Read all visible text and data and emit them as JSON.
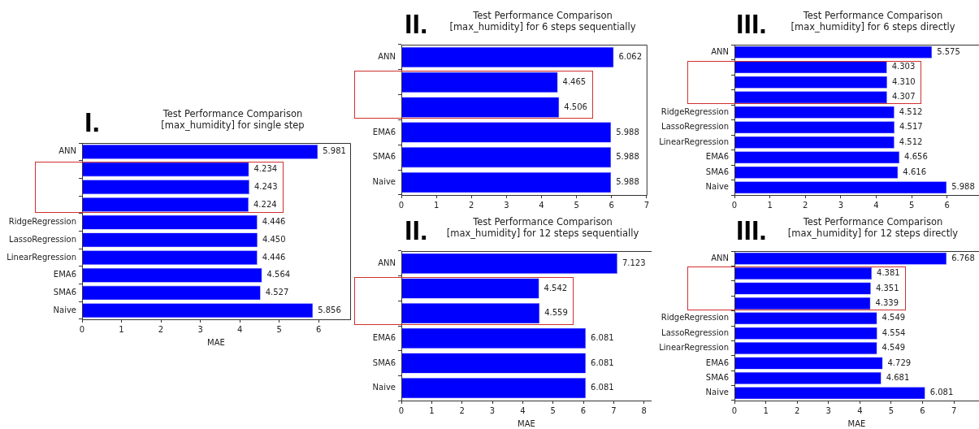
{
  "chart_data": [
    {
      "type": "bar",
      "orientation": "horizontal",
      "title": "Test Performance Comparison\n[max_humidity] for single step",
      "annotations": [
        "I."
      ],
      "xlabel": "MAE",
      "categories": [
        "ANN",
        null,
        null,
        null,
        "RidgeRegression",
        "LassoRegression",
        "LinearRegression",
        "EMA6",
        "SMA6",
        "Naive"
      ],
      "values": [
        5.981,
        4.234,
        4.243,
        4.224,
        4.446,
        4.45,
        4.446,
        4.564,
        4.527,
        5.856
      ],
      "value_labels": [
        "5.981",
        "4.234",
        "4.243",
        "4.224",
        "4.446",
        "4.450",
        "4.446",
        "4.564",
        "4.527",
        "5.856"
      ],
      "color": "#0000ff",
      "xlim": [
        0,
        6.8
      ],
      "xticks": [
        0,
        1,
        2,
        3,
        4,
        5,
        6
      ],
      "grid": false
    },
    {
      "type": "bar",
      "orientation": "horizontal",
      "title": "Test Performance Comparison\n[max_humidity] for 6 steps sequentially",
      "annotations": [
        "II."
      ],
      "categories": [
        "ANN",
        null,
        null,
        "EMA6",
        "SMA6",
        "Naive"
      ],
      "values": [
        6.062,
        4.465,
        4.506,
        5.988,
        5.988,
        5.988
      ],
      "value_labels": [
        "6.062",
        "4.465",
        "4.506",
        "5.988",
        "5.988",
        "5.988"
      ],
      "color": "#0000ff",
      "xlim": [
        0,
        7
      ],
      "xticks": [
        0,
        1,
        2,
        3,
        4,
        5,
        6,
        7
      ],
      "grid": false
    },
    {
      "type": "bar",
      "orientation": "horizontal",
      "title": "Test Performance Comparison\n[max_humidity] for 6 steps directly",
      "annotations": [
        "III."
      ],
      "categories": [
        "ANN",
        null,
        null,
        null,
        "RidgeRegression",
        "LassoRegression",
        "LinearRegression",
        "EMA6",
        "SMA6",
        "Naive"
      ],
      "values": [
        5.575,
        4.303,
        4.31,
        4.307,
        4.512,
        4.517,
        4.512,
        4.656,
        4.616,
        5.988
      ],
      "value_labels": [
        "5.575",
        "4.303",
        "4.310",
        "4.307",
        "4.512",
        "4.517",
        "4.512",
        "4.656",
        "4.616",
        "5.988"
      ],
      "color": "#0000ff",
      "xlim": [
        0,
        6.9
      ],
      "xticks": [
        0,
        1,
        2,
        3,
        4,
        5,
        6
      ],
      "grid": false
    },
    {
      "type": "bar",
      "orientation": "horizontal",
      "title": "Test Performance Comparison\n[max_humidity] for 12 steps sequentially",
      "annotations": [
        "II."
      ],
      "xlabel": "MAE",
      "categories": [
        "ANN",
        null,
        null,
        "EMA6",
        "SMA6",
        "Naive"
      ],
      "values": [
        7.123,
        4.542,
        4.559,
        6.081,
        6.081,
        6.081
      ],
      "value_labels": [
        "7.123",
        "4.542",
        "4.559",
        "6.081",
        "6.081",
        "6.081"
      ],
      "color": "#0000ff",
      "xlim": [
        0,
        8.25
      ],
      "xticks": [
        0,
        1,
        2,
        3,
        4,
        5,
        6,
        7,
        8
      ],
      "grid": false
    },
    {
      "type": "bar",
      "orientation": "horizontal",
      "title": "Test Performance Comparison\n[max_humidity] for 12 steps directly",
      "annotations": [
        "III."
      ],
      "xlabel": "MAE",
      "categories": [
        "ANN",
        null,
        null,
        null,
        "RidgeRegression",
        "LassoRegression",
        "LinearRegression",
        "EMA6",
        "SMA6",
        "Naive"
      ],
      "values": [
        6.768,
        4.381,
        4.351,
        4.339,
        4.549,
        4.554,
        4.549,
        4.729,
        4.681,
        6.081
      ],
      "value_labels": [
        "6.768",
        "4.381",
        "4.351",
        "4.339",
        "4.549",
        "4.554",
        "4.549",
        "4.729",
        "4.681",
        "6.081"
      ],
      "color": "#0000ff",
      "xlim": [
        0,
        7.8
      ],
      "xticks": [
        0,
        1,
        2,
        3,
        4,
        5,
        6,
        7
      ],
      "grid": false
    }
  ]
}
